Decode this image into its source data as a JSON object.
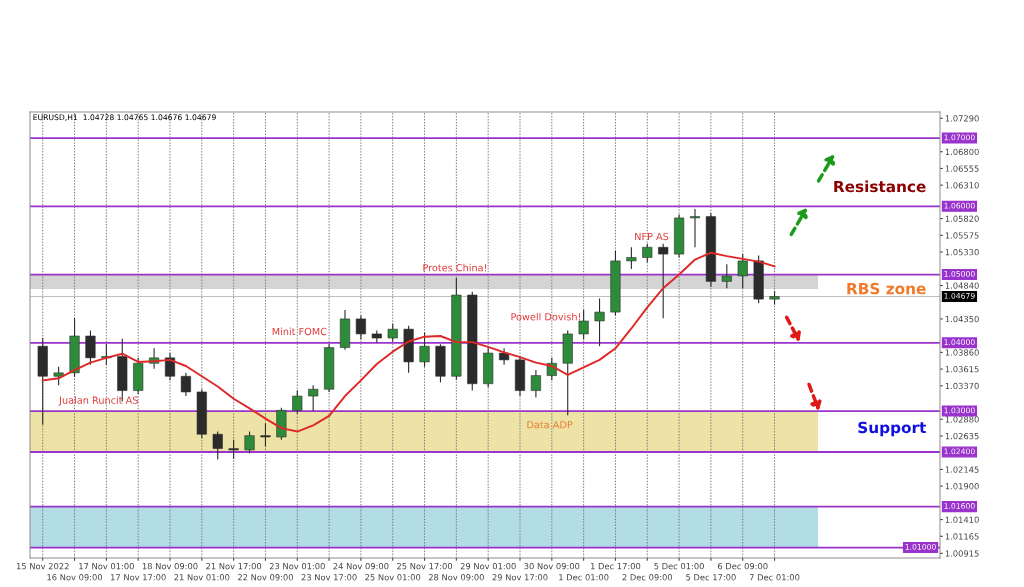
{
  "chart_data": {
    "type": "candlestick",
    "title": "EURUSD,H1  1.04728 1.04765 1.04676 1.04679",
    "categories": [
      "15 Nov 2022",
      null,
      "16 Nov 09:00",
      null,
      "17 Nov 01:00",
      null,
      "17 Nov 17:00",
      null,
      "18 Nov 09:00",
      null,
      "21 Nov 01:00",
      null,
      "21 Nov 17:00",
      null,
      "22 Nov 09:00",
      null,
      "23 Nov 01:00",
      null,
      "23 Nov 17:00",
      null,
      "24 Nov 09:00",
      null,
      "25 Nov 01:00",
      null,
      "25 Nov 17:00",
      null,
      "28 Nov 09:00",
      null,
      "29 Nov 01:00",
      null,
      "29 Nov 17:00",
      null,
      "30 Nov 09:00",
      null,
      "1 Dec 01:00",
      null,
      "1 Dec 17:00",
      null,
      "2 Dec 09:00",
      null,
      "5 Dec 01:00",
      null,
      "5 Dec 17:00",
      null,
      "6 Dec 09:00",
      null,
      "7 Dec 01:00"
    ],
    "ohlc": [
      [
        1.0395,
        1.0407,
        1.028,
        1.0351
      ],
      [
        1.0351,
        1.0365,
        1.0338,
        1.0356
      ],
      [
        1.0356,
        1.0436,
        1.035,
        1.041
      ],
      [
        1.041,
        1.0418,
        1.0368,
        1.0378
      ],
      [
        1.0378,
        1.0398,
        1.0368,
        1.038
      ],
      [
        1.038,
        1.0406,
        1.0314,
        1.033
      ],
      [
        1.033,
        1.0378,
        1.0325,
        1.037
      ],
      [
        1.037,
        1.0392,
        1.0362,
        1.0378
      ],
      [
        1.0378,
        1.0385,
        1.0345,
        1.0351
      ],
      [
        1.0351,
        1.0356,
        1.0322,
        1.0328
      ],
      [
        1.0328,
        1.0332,
        1.026,
        1.0266
      ],
      [
        1.0266,
        1.027,
        1.0229,
        1.0245
      ],
      [
        1.0245,
        1.0258,
        1.023,
        1.0243
      ],
      [
        1.0243,
        1.027,
        1.0238,
        1.0264
      ],
      [
        1.0264,
        1.0282,
        1.0248,
        1.0262
      ],
      [
        1.0262,
        1.0305,
        1.0258,
        1.0301
      ],
      [
        1.0301,
        1.033,
        1.0296,
        1.0322
      ],
      [
        1.0322,
        1.0338,
        1.03,
        1.0332
      ],
      [
        1.0332,
        1.0398,
        1.0328,
        1.0393
      ],
      [
        1.0393,
        1.0448,
        1.039,
        1.0435
      ],
      [
        1.0435,
        1.044,
        1.0405,
        1.0413
      ],
      [
        1.0413,
        1.0418,
        1.04,
        1.0407
      ],
      [
        1.0407,
        1.0428,
        1.0402,
        1.042
      ],
      [
        1.042,
        1.0425,
        1.0356,
        1.0372
      ],
      [
        1.0372,
        1.0415,
        1.0365,
        1.0395
      ],
      [
        1.0395,
        1.0398,
        1.0342,
        1.0351
      ],
      [
        1.0351,
        1.0495,
        1.0346,
        1.047
      ],
      [
        1.047,
        1.0475,
        1.033,
        1.034
      ],
      [
        1.034,
        1.0395,
        1.0335,
        1.0385
      ],
      [
        1.0385,
        1.0392,
        1.0368,
        1.0375
      ],
      [
        1.0375,
        1.038,
        1.0322,
        1.033
      ],
      [
        1.033,
        1.036,
        1.032,
        1.0352
      ],
      [
        1.0352,
        1.0378,
        1.0345,
        1.037
      ],
      [
        1.037,
        1.0418,
        1.0294,
        1.0413
      ],
      [
        1.0413,
        1.0448,
        1.0405,
        1.0432
      ],
      [
        1.0432,
        1.0465,
        1.0395,
        1.0445
      ],
      [
        1.0445,
        1.0535,
        1.044,
        1.052
      ],
      [
        1.052,
        1.054,
        1.0508,
        1.0525
      ],
      [
        1.0525,
        1.0545,
        1.0518,
        1.054
      ],
      [
        1.054,
        1.0545,
        1.0436,
        1.053
      ],
      [
        1.053,
        1.0588,
        1.0525,
        1.0583
      ],
      [
        1.0583,
        1.0596,
        1.054,
        1.0585
      ],
      [
        1.0585,
        1.059,
        1.0482,
        1.049
      ],
      [
        1.049,
        1.0515,
        1.048,
        1.0498
      ],
      [
        1.0498,
        1.053,
        1.048,
        1.052
      ],
      [
        1.052,
        1.0528,
        1.0458,
        1.0464
      ],
      [
        1.0464,
        1.0476,
        1.0456,
        1.04679
      ]
    ],
    "series": [
      {
        "type": "line",
        "color": "#e02828",
        "values": [
          1.0345,
          1.0348,
          1.036,
          1.0371,
          1.0378,
          1.0384,
          1.0372,
          1.0373,
          1.0375,
          1.0366,
          1.0351,
          1.0336,
          1.0318,
          1.0304,
          1.0289,
          1.0275,
          1.027,
          1.0279,
          1.0293,
          1.0322,
          1.0345,
          1.0369,
          1.0387,
          1.0402,
          1.0409,
          1.041,
          1.0401,
          1.0401,
          1.0394,
          1.0386,
          1.0379,
          1.0371,
          1.0366,
          1.0353,
          1.0364,
          1.0375,
          1.0392,
          1.0421,
          1.0452,
          1.048,
          1.05,
          1.0522,
          1.0532,
          1.0527,
          1.0523,
          1.0519,
          1.0512
        ]
      }
    ],
    "ylim": [
      1.00847,
      1.07382
    ],
    "yticks": [
      {
        "value": 1.0729,
        "label": "1.07290"
      },
      {
        "value": 1.068,
        "label": "1.06800"
      },
      {
        "value": 1.06555,
        "label": "1.06555"
      },
      {
        "value": 1.0631,
        "label": "1.06310"
      },
      {
        "value": 1.0582,
        "label": "1.05820"
      },
      {
        "value": 1.05575,
        "label": "1.05575"
      },
      {
        "value": 1.0533,
        "label": "1.05330"
      },
      {
        "value": 1.0484,
        "label": "1.04840"
      },
      {
        "value": 1.0435,
        "label": "1.04350"
      },
      {
        "value": 1.0386,
        "label": "1.03860"
      },
      {
        "value": 1.03615,
        "label": "1.03615"
      },
      {
        "value": 1.0337,
        "label": "1.03370"
      },
      {
        "value": 1.0288,
        "label": "1.02880"
      },
      {
        "value": 1.02635,
        "label": "1.02635"
      },
      {
        "value": 1.02145,
        "label": "1.02145"
      },
      {
        "value": 1.019,
        "label": "1.01900"
      },
      {
        "value": 1.0141,
        "label": "1.01410"
      },
      {
        "value": 1.01165,
        "label": "1.01165"
      },
      {
        "value": 1.00915,
        "label": "1.00915"
      }
    ],
    "ref_lines": [
      {
        "axis": "y",
        "value": 1.07,
        "label": "1.07000",
        "color": "#9933cc"
      },
      {
        "axis": "y",
        "value": 1.06,
        "label": "1.06000",
        "color": "#9933cc"
      },
      {
        "axis": "y",
        "value": 1.05,
        "label": "1.05000",
        "color": "#9933cc"
      },
      {
        "axis": "y",
        "value": 1.04679,
        "label": "1.04679",
        "color": "#c0c0c0"
      },
      {
        "axis": "y",
        "value": 1.04,
        "label": "1.04000",
        "color": "#9933cc"
      },
      {
        "axis": "y",
        "value": 1.03,
        "label": "1.03000",
        "color": "#9933cc"
      },
      {
        "axis": "y",
        "value": 1.024,
        "label": "1.02400",
        "color": "#9933cc"
      },
      {
        "axis": "y",
        "value": 1.016,
        "label": "1.01600",
        "color": "#9933cc"
      },
      {
        "axis": "y",
        "value": 1.01,
        "label": "1.01000",
        "color": "#9933cc"
      }
    ],
    "bands": [
      {
        "axis": "y",
        "from": 1.0479,
        "to": 1.05,
        "label": "RBS zone",
        "color": "#d4d4d4"
      },
      {
        "axis": "y",
        "from": 1.024,
        "to": 1.03,
        "label": "Support",
        "color": "#eee3a6"
      },
      {
        "axis": "y",
        "from": 1.01,
        "to": 1.016,
        "color": "#b2dde4"
      }
    ],
    "annotations": [
      "Jualan Runcit AS",
      "Minit FOMC",
      "Protes China!",
      "Powell Dovish!",
      "Data ADP",
      "NFP AS",
      "Resistance"
    ],
    "grid": "x"
  }
}
